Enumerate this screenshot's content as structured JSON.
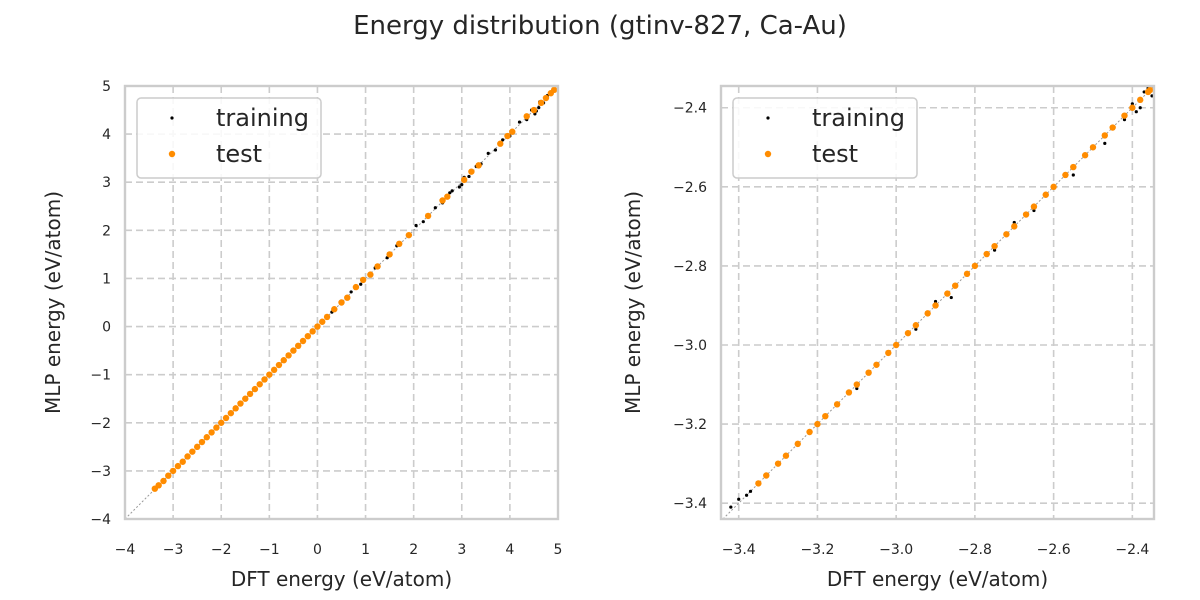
{
  "figure": {
    "title": "Energy distribution (gtinv-827, Ca-Au)"
  },
  "chart_data": [
    {
      "type": "scatter",
      "xlabel": "DFT energy (eV/atom)",
      "ylabel": "MLP energy (eV/atom)",
      "xlim": [
        -4,
        5
      ],
      "ylim": [
        -4,
        5
      ],
      "x_ticks": [
        -4,
        -3,
        -2,
        -1,
        0,
        1,
        2,
        3,
        4,
        5
      ],
      "y_ticks": [
        -4,
        -3,
        -2,
        -1,
        0,
        1,
        2,
        3,
        4,
        5
      ],
      "x_tick_labels": [
        "−4",
        "−3",
        "−2",
        "−1",
        "0",
        "1",
        "2",
        "3",
        "4",
        "5"
      ],
      "y_tick_labels": [
        "−4",
        "−3",
        "−2",
        "−1",
        "0",
        "1",
        "2",
        "3",
        "4",
        "5"
      ],
      "grid": true,
      "legend_position": "top-left",
      "reference_line": "y = x",
      "series": [
        {
          "name": "training",
          "color": "#000000",
          "marker_size": 1.6,
          "points": [
            [
              -3.35,
              -3.36
            ],
            [
              -3.2,
              -3.19
            ],
            [
              -2.9,
              -2.91
            ],
            [
              -2.5,
              -2.49
            ],
            [
              -2.1,
              -2.1
            ],
            [
              -1.7,
              -1.71
            ],
            [
              -1.3,
              -1.29
            ],
            [
              -0.9,
              -0.9
            ],
            [
              -0.5,
              -0.5
            ],
            [
              -0.1,
              -0.11
            ],
            [
              0.3,
              0.3
            ],
            [
              0.7,
              0.72
            ],
            [
              0.9,
              0.88
            ],
            [
              1.2,
              1.22
            ],
            [
              1.45,
              1.43
            ],
            [
              1.65,
              1.68
            ],
            [
              1.9,
              1.88
            ],
            [
              2.05,
              2.1
            ],
            [
              2.2,
              2.18
            ],
            [
              2.45,
              2.47
            ],
            [
              2.6,
              2.57
            ],
            [
              2.8,
              2.82
            ],
            [
              2.95,
              2.9
            ],
            [
              3.05,
              3.1
            ],
            [
              3.15,
              3.12
            ],
            [
              3.3,
              3.33
            ],
            [
              3.4,
              3.38
            ],
            [
              3.55,
              3.6
            ],
            [
              3.7,
              3.67
            ],
            [
              3.85,
              3.88
            ],
            [
              4.0,
              3.96
            ],
            [
              4.2,
              4.25
            ],
            [
              4.35,
              4.3
            ],
            [
              4.45,
              4.5
            ],
            [
              4.55,
              4.48
            ],
            [
              4.62,
              4.67
            ],
            [
              4.7,
              4.65
            ],
            [
              4.78,
              4.8
            ],
            [
              4.85,
              4.83
            ],
            [
              4.9,
              4.92
            ],
            [
              4.52,
              4.42
            ],
            [
              4.6,
              4.55
            ],
            [
              3.0,
              2.95
            ],
            [
              2.75,
              2.78
            ]
          ]
        },
        {
          "name": "test",
          "color": "#ff8c00",
          "marker_size": 3.2,
          "points": [
            [
              -3.38,
              -3.37
            ],
            [
              -3.3,
              -3.3
            ],
            [
              -3.2,
              -3.21
            ],
            [
              -3.1,
              -3.1
            ],
            [
              -3.0,
              -3.0
            ],
            [
              -2.9,
              -2.9
            ],
            [
              -2.8,
              -2.81
            ],
            [
              -2.7,
              -2.7
            ],
            [
              -2.6,
              -2.6
            ],
            [
              -2.5,
              -2.5
            ],
            [
              -2.4,
              -2.4
            ],
            [
              -2.3,
              -2.3
            ],
            [
              -2.2,
              -2.2
            ],
            [
              -2.1,
              -2.1
            ],
            [
              -2.0,
              -2.0
            ],
            [
              -1.9,
              -1.9
            ],
            [
              -1.8,
              -1.8
            ],
            [
              -1.7,
              -1.7
            ],
            [
              -1.6,
              -1.6
            ],
            [
              -1.5,
              -1.5
            ],
            [
              -1.4,
              -1.4
            ],
            [
              -1.3,
              -1.3
            ],
            [
              -1.2,
              -1.2
            ],
            [
              -1.1,
              -1.1
            ],
            [
              -1.0,
              -1.0
            ],
            [
              -0.9,
              -0.9
            ],
            [
              -0.8,
              -0.8
            ],
            [
              -0.7,
              -0.7
            ],
            [
              -0.6,
              -0.6
            ],
            [
              -0.5,
              -0.5
            ],
            [
              -0.4,
              -0.4
            ],
            [
              -0.3,
              -0.3
            ],
            [
              -0.2,
              -0.2
            ],
            [
              -0.1,
              -0.1
            ],
            [
              0.0,
              0.0
            ],
            [
              0.1,
              0.1
            ],
            [
              0.2,
              0.2
            ],
            [
              0.35,
              0.36
            ],
            [
              0.5,
              0.5
            ],
            [
              0.62,
              0.6
            ],
            [
              0.8,
              0.82
            ],
            [
              0.95,
              0.97
            ],
            [
              1.1,
              1.08
            ],
            [
              1.25,
              1.25
            ],
            [
              1.5,
              1.5
            ],
            [
              1.7,
              1.72
            ],
            [
              1.9,
              1.9
            ],
            [
              2.3,
              2.3
            ],
            [
              2.6,
              2.62
            ],
            [
              2.7,
              2.7
            ],
            [
              3.05,
              3.05
            ],
            [
              3.2,
              3.22
            ],
            [
              3.35,
              3.35
            ],
            [
              3.8,
              3.8
            ],
            [
              3.95,
              3.96
            ],
            [
              4.05,
              4.05
            ],
            [
              4.35,
              4.37
            ],
            [
              4.5,
              4.5
            ],
            [
              4.65,
              4.65
            ],
            [
              4.75,
              4.75
            ],
            [
              4.85,
              4.85
            ],
            [
              4.92,
              4.92
            ]
          ]
        }
      ]
    },
    {
      "type": "scatter",
      "xlabel": "DFT energy (eV/atom)",
      "ylabel": "MLP energy (eV/atom)",
      "xlim": [
        -3.445,
        -2.345
      ],
      "ylim": [
        -3.44,
        -2.345
      ],
      "x_ticks": [
        -3.4,
        -3.2,
        -3.0,
        -2.8,
        -2.6,
        -2.4
      ],
      "y_ticks": [
        -3.4,
        -3.2,
        -3.0,
        -2.8,
        -2.6,
        -2.4
      ],
      "x_tick_labels": [
        "−3.4",
        "−3.2",
        "−3.0",
        "−2.8",
        "−2.6",
        "−2.4"
      ],
      "y_tick_labels": [
        "−3.4",
        "−3.2",
        "−3.0",
        "−2.8",
        "−2.6",
        "−2.4"
      ],
      "grid": true,
      "legend_position": "top-left",
      "reference_line": "y = x",
      "series": [
        {
          "name": "training",
          "color": "#000000",
          "marker_size": 1.6,
          "points": [
            [
              -3.42,
              -3.41
            ],
            [
              -3.4,
              -3.39
            ],
            [
              -3.38,
              -3.38
            ],
            [
              -3.37,
              -3.37
            ],
            [
              -3.3,
              -3.3
            ],
            [
              -3.2,
              -3.2
            ],
            [
              -3.1,
              -3.11
            ],
            [
              -3.0,
              -3.0
            ],
            [
              -2.95,
              -2.96
            ],
            [
              -2.9,
              -2.89
            ],
            [
              -2.86,
              -2.88
            ],
            [
              -2.8,
              -2.8
            ],
            [
              -2.75,
              -2.76
            ],
            [
              -2.7,
              -2.69
            ],
            [
              -2.65,
              -2.66
            ],
            [
              -2.6,
              -2.6
            ],
            [
              -2.55,
              -2.57
            ],
            [
              -2.5,
              -2.5
            ],
            [
              -2.47,
              -2.49
            ],
            [
              -2.45,
              -2.45
            ],
            [
              -2.42,
              -2.43
            ],
            [
              -2.4,
              -2.39
            ],
            [
              -2.38,
              -2.4
            ],
            [
              -2.36,
              -2.35
            ],
            [
              -2.35,
              -2.37
            ],
            [
              -2.37,
              -2.36
            ],
            [
              -2.39,
              -2.41
            ]
          ]
        },
        {
          "name": "test",
          "color": "#ff8c00",
          "marker_size": 3.2,
          "points": [
            [
              -3.35,
              -3.35
            ],
            [
              -3.33,
              -3.33
            ],
            [
              -3.3,
              -3.3
            ],
            [
              -3.28,
              -3.28
            ],
            [
              -3.25,
              -3.25
            ],
            [
              -3.22,
              -3.22
            ],
            [
              -3.2,
              -3.2
            ],
            [
              -3.18,
              -3.18
            ],
            [
              -3.15,
              -3.15
            ],
            [
              -3.12,
              -3.12
            ],
            [
              -3.1,
              -3.1
            ],
            [
              -3.07,
              -3.07
            ],
            [
              -3.05,
              -3.05
            ],
            [
              -3.02,
              -3.02
            ],
            [
              -3.0,
              -3.0
            ],
            [
              -2.97,
              -2.97
            ],
            [
              -2.95,
              -2.95
            ],
            [
              -2.92,
              -2.92
            ],
            [
              -2.9,
              -2.9
            ],
            [
              -2.87,
              -2.87
            ],
            [
              -2.85,
              -2.85
            ],
            [
              -2.82,
              -2.82
            ],
            [
              -2.8,
              -2.8
            ],
            [
              -2.77,
              -2.77
            ],
            [
              -2.75,
              -2.75
            ],
            [
              -2.72,
              -2.72
            ],
            [
              -2.7,
              -2.7
            ],
            [
              -2.67,
              -2.67
            ],
            [
              -2.65,
              -2.65
            ],
            [
              -2.62,
              -2.62
            ],
            [
              -2.6,
              -2.6
            ],
            [
              -2.57,
              -2.57
            ],
            [
              -2.55,
              -2.55
            ],
            [
              -2.52,
              -2.52
            ],
            [
              -2.5,
              -2.5
            ],
            [
              -2.47,
              -2.47
            ],
            [
              -2.45,
              -2.45
            ],
            [
              -2.42,
              -2.42
            ],
            [
              -2.4,
              -2.4
            ],
            [
              -2.38,
              -2.38
            ],
            [
              -2.36,
              -2.36
            ],
            [
              -2.355,
              -2.355
            ]
          ]
        }
      ]
    }
  ]
}
